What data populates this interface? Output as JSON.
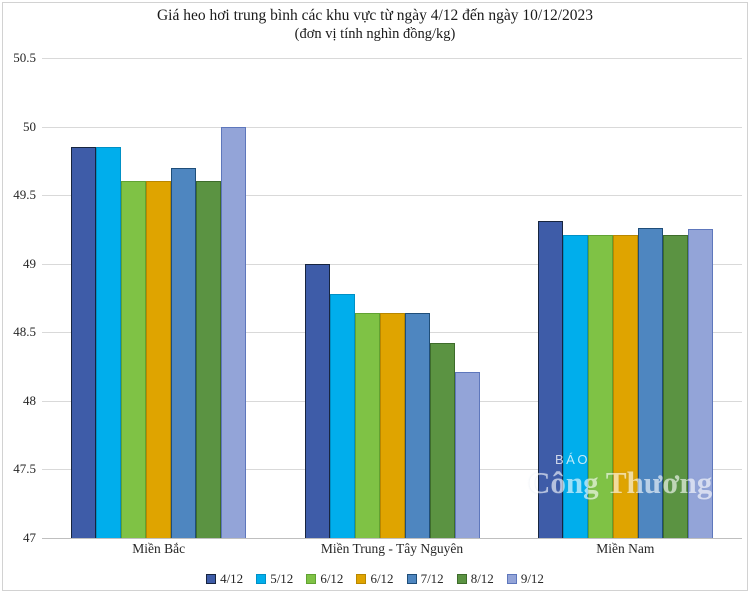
{
  "title": "Giá heo hơi trung bình các khu vực từ ngày 4/12 đến ngày 10/12/2023",
  "subtitle": "(đơn vị tính nghìn đồng/kg)",
  "watermark": {
    "line1": "BÁO",
    "line2": "Công Thương"
  },
  "chart_data": {
    "type": "bar",
    "title": "Giá heo hơi trung bình các khu vực từ ngày 4/12 đến ngày 10/12/2023",
    "subtitle": "(đơn vị tính nghìn đồng/kg)",
    "categories": [
      "Miền Bắc",
      "Miền Trung - Tây Nguyên",
      "Miền Nam"
    ],
    "series": [
      {
        "name": "4/12",
        "color": "#3e5ca8",
        "border": "#17253f",
        "values": [
          49.85,
          49.0,
          49.31
        ]
      },
      {
        "name": "5/12",
        "color": "#00aeec",
        "border": "#0090c5",
        "values": [
          49.85,
          48.78,
          49.21
        ]
      },
      {
        "name": "6/12",
        "color": "#7fc245",
        "border": "#61a232",
        "values": [
          49.6,
          48.64,
          49.21
        ]
      },
      {
        "name": "6/12",
        "color": "#dfa400",
        "border": "#b88700",
        "values": [
          49.6,
          48.64,
          49.21
        ]
      },
      {
        "name": "7/12",
        "color": "#4e86c0",
        "border": "#1f4e79",
        "values": [
          49.7,
          48.64,
          49.26
        ]
      },
      {
        "name": "8/12",
        "color": "#5b9342",
        "border": "#3e6c2b",
        "values": [
          49.6,
          48.42,
          49.21
        ]
      },
      {
        "name": "9/12",
        "color": "#93a4d8",
        "border": "#5e77bc",
        "values": [
          50.0,
          48.21,
          49.25
        ]
      }
    ],
    "ylim": [
      47,
      50.5
    ],
    "yticks": [
      47,
      47.5,
      48,
      48.5,
      49,
      49.5,
      50,
      50.5
    ],
    "ytick_labels": [
      "47",
      "47.5",
      "48",
      "48.5",
      "49",
      "49.5",
      "50",
      "50.5"
    ],
    "xlabel": "",
    "ylabel": "",
    "grid": true,
    "legend_position": "bottom"
  }
}
